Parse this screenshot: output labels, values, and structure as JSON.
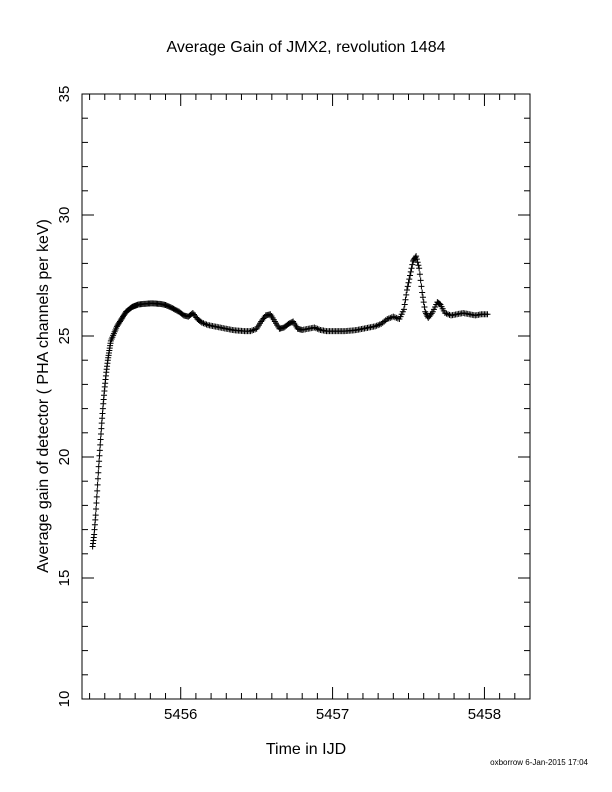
{
  "chart_data": {
    "type": "scatter",
    "title": "Average Gain of JMX2, revolution 1484",
    "xlabel": "Time in IJD",
    "ylabel": "Average gain of detector ( PHA channels per keV)",
    "xlim": [
      5455.35,
      5458.3
    ],
    "ylim": [
      10,
      35
    ],
    "xticks": [
      5456,
      5457,
      5458
    ],
    "yticks": [
      10,
      15,
      20,
      25,
      30,
      35
    ],
    "marker": "plus",
    "color": "#000000",
    "grid": false,
    "points": [
      [
        5455.42,
        16.3
      ],
      [
        5455.43,
        16.8
      ],
      [
        5455.44,
        17.6
      ],
      [
        5455.45,
        18.6
      ],
      [
        5455.46,
        19.6
      ],
      [
        5455.47,
        20.5
      ],
      [
        5455.48,
        21.4
      ],
      [
        5455.49,
        22.2
      ],
      [
        5455.5,
        22.9
      ],
      [
        5455.51,
        23.5
      ],
      [
        5455.52,
        24.0
      ],
      [
        5455.53,
        24.4
      ],
      [
        5455.54,
        24.8
      ],
      [
        5455.56,
        25.1
      ],
      [
        5455.58,
        25.4
      ],
      [
        5455.6,
        25.6
      ],
      [
        5455.62,
        25.8
      ],
      [
        5455.64,
        26.0
      ],
      [
        5455.66,
        26.1
      ],
      [
        5455.68,
        26.2
      ],
      [
        5455.7,
        26.25
      ],
      [
        5455.72,
        26.3
      ],
      [
        5455.75,
        26.32
      ],
      [
        5455.78,
        26.34
      ],
      [
        5455.81,
        26.35
      ],
      [
        5455.84,
        26.34
      ],
      [
        5455.87,
        26.32
      ],
      [
        5455.9,
        26.28
      ],
      [
        5455.93,
        26.2
      ],
      [
        5455.96,
        26.1
      ],
      [
        5455.99,
        26.0
      ],
      [
        5456.02,
        25.85
      ],
      [
        5456.05,
        25.8
      ],
      [
        5456.08,
        25.95
      ],
      [
        5456.11,
        25.7
      ],
      [
        5456.14,
        25.55
      ],
      [
        5456.18,
        25.45
      ],
      [
        5456.22,
        25.4
      ],
      [
        5456.26,
        25.35
      ],
      [
        5456.3,
        25.3
      ],
      [
        5456.34,
        25.25
      ],
      [
        5456.38,
        25.22
      ],
      [
        5456.42,
        25.2
      ],
      [
        5456.46,
        25.2
      ],
      [
        5456.5,
        25.3
      ],
      [
        5456.53,
        25.6
      ],
      [
        5456.56,
        25.85
      ],
      [
        5456.59,
        25.9
      ],
      [
        5456.62,
        25.6
      ],
      [
        5456.65,
        25.3
      ],
      [
        5456.68,
        25.35
      ],
      [
        5456.71,
        25.5
      ],
      [
        5456.74,
        25.6
      ],
      [
        5456.77,
        25.3
      ],
      [
        5456.8,
        25.25
      ],
      [
        5456.84,
        25.3
      ],
      [
        5456.88,
        25.35
      ],
      [
        5456.92,
        25.25
      ],
      [
        5456.96,
        25.2
      ],
      [
        5457.0,
        25.2
      ],
      [
        5457.04,
        25.2
      ],
      [
        5457.08,
        25.2
      ],
      [
        5457.12,
        25.22
      ],
      [
        5457.16,
        25.25
      ],
      [
        5457.2,
        25.3
      ],
      [
        5457.24,
        25.35
      ],
      [
        5457.28,
        25.4
      ],
      [
        5457.32,
        25.5
      ],
      [
        5457.36,
        25.7
      ],
      [
        5457.4,
        25.8
      ],
      [
        5457.44,
        25.7
      ],
      [
        5457.47,
        26.1
      ],
      [
        5457.49,
        26.9
      ],
      [
        5457.51,
        27.5
      ],
      [
        5457.53,
        28.1
      ],
      [
        5457.55,
        28.3
      ],
      [
        5457.57,
        27.8
      ],
      [
        5457.59,
        26.8
      ],
      [
        5457.61,
        26.0
      ],
      [
        5457.63,
        25.75
      ],
      [
        5457.66,
        26.0
      ],
      [
        5457.69,
        26.4
      ],
      [
        5457.71,
        26.3
      ],
      [
        5457.74,
        25.95
      ],
      [
        5457.78,
        25.85
      ],
      [
        5457.82,
        25.9
      ],
      [
        5457.86,
        25.95
      ],
      [
        5457.9,
        25.9
      ],
      [
        5457.94,
        25.85
      ],
      [
        5457.98,
        25.9
      ],
      [
        5458.02,
        25.9
      ]
    ]
  },
  "footer": "oxborrow 6-Jan-2015 17:04"
}
